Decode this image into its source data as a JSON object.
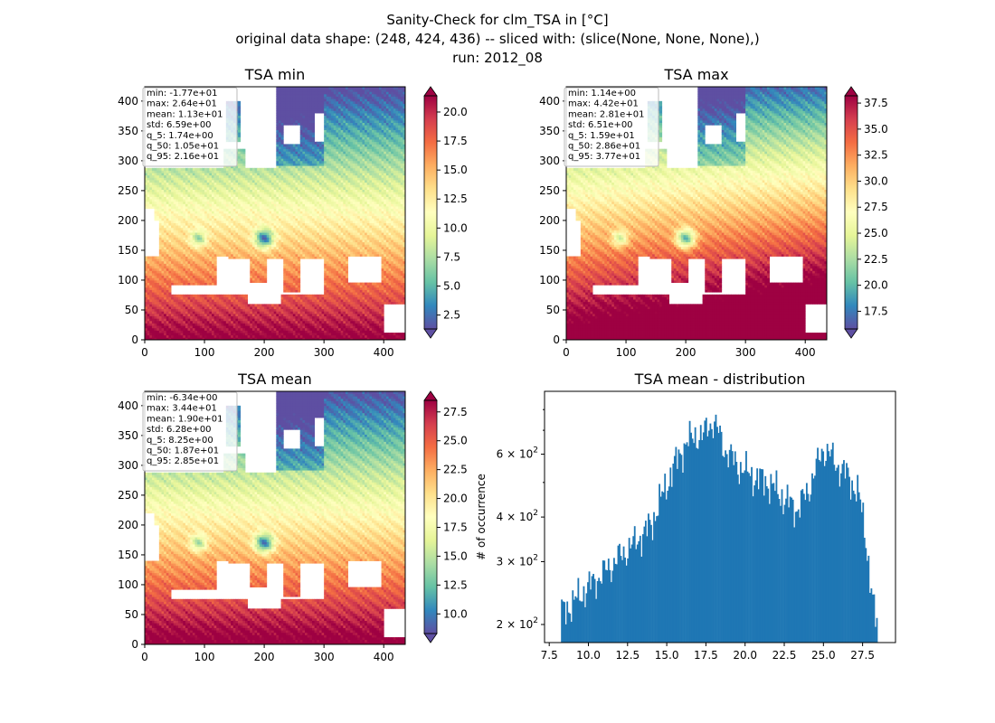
{
  "figure": {
    "title_lines": [
      "Sanity-Check for clm_TSA in [°C]",
      "original data shape: (248, 424, 436) -- sliced with: (slice(None, None, None),)",
      "run: 2012_08"
    ]
  },
  "colormap": "Spectral_r",
  "chart_data": [
    {
      "type": "heatmap",
      "title": "TSA min",
      "xlim": [
        0,
        436
      ],
      "ylim": [
        0,
        424
      ],
      "xticks": [
        0,
        100,
        200,
        300,
        400
      ],
      "yticks": [
        0,
        50,
        100,
        150,
        200,
        250,
        300,
        350,
        400
      ],
      "colorbar": {
        "vmin": 1.3,
        "vmax": 21.4,
        "ticks": [
          "2.5",
          "5.0",
          "7.5",
          "10.0",
          "12.5",
          "15.0",
          "17.5",
          "20.0"
        ],
        "extend": "both"
      },
      "stats": [
        "min: -1.77e+01",
        "max: 2.64e+01",
        "mean: 1.13e+01",
        "std: 6.59e+00",
        "q_5: 1.74e+00",
        "q_50: 1.05e+01",
        "q_95: 2.16e+01"
      ]
    },
    {
      "type": "heatmap",
      "title": "TSA max",
      "xlim": [
        0,
        436
      ],
      "ylim": [
        0,
        424
      ],
      "xticks": [
        0,
        100,
        200,
        300,
        400
      ],
      "yticks": [
        0,
        50,
        100,
        150,
        200,
        250,
        300,
        350,
        400
      ],
      "colorbar": {
        "vmin": 15.8,
        "vmax": 38.2,
        "ticks": [
          "17.5",
          "20.0",
          "22.5",
          "25.0",
          "27.5",
          "30.0",
          "32.5",
          "35.0",
          "37.5"
        ],
        "extend": "both"
      },
      "stats": [
        "min: 1.14e+00",
        "max: 4.42e+01",
        "mean: 2.81e+01",
        "std: 6.51e+00",
        "q_5: 1.59e+01",
        "q_50: 2.86e+01",
        "q_95: 3.77e+01"
      ]
    },
    {
      "type": "heatmap",
      "title": "TSA mean",
      "xlim": [
        0,
        436
      ],
      "ylim": [
        0,
        424
      ],
      "xticks": [
        0,
        100,
        200,
        300,
        400
      ],
      "yticks": [
        0,
        50,
        100,
        150,
        200,
        250,
        300,
        350,
        400
      ],
      "colorbar": {
        "vmin": 8.3,
        "vmax": 28.5,
        "ticks": [
          "10.0",
          "12.5",
          "15.0",
          "17.5",
          "20.0",
          "22.5",
          "25.0",
          "27.5"
        ],
        "extend": "both"
      },
      "stats": [
        "min: -6.34e+00",
        "max: 3.44e+01",
        "mean: 1.90e+01",
        "std: 6.28e+00",
        "q_5: 8.25e+00",
        "q_50: 1.87e+01",
        "q_95: 2.85e+01"
      ]
    },
    {
      "type": "bar",
      "subtype": "histogram",
      "title": "TSA mean - distribution",
      "xlabel": "",
      "ylabel": "# of occurrence",
      "yscale": "log",
      "xlim": [
        7.2,
        29.6
      ],
      "ylim": [
        178,
        900
      ],
      "xticks": [
        "7.5",
        "10.0",
        "12.5",
        "15.0",
        "17.5",
        "20.0",
        "22.5",
        "25.0",
        "27.5"
      ],
      "yticks": [
        {
          "mantissa": "2",
          "exp": "2",
          "value": 200
        },
        {
          "mantissa": "3",
          "exp": "2",
          "value": 300
        },
        {
          "mantissa": "4",
          "exp": "2",
          "value": 400
        },
        {
          "mantissa": "6",
          "exp": "2",
          "value": 600
        }
      ],
      "color": "#1f77b4",
      "x_anchors": [
        8.25,
        9.0,
        10.0,
        11.0,
        12.0,
        13.0,
        14.0,
        14.8,
        15.5,
        16.2,
        16.8,
        17.3,
        17.6,
        18.0,
        18.7,
        19.5,
        20.5,
        21.5,
        22.5,
        23.3,
        24.0,
        24.6,
        25.0,
        25.3,
        25.8,
        26.3,
        26.8,
        27.2,
        27.6,
        28.0,
        28.2,
        28.4
      ],
      "y_anchors": [
        215,
        230,
        255,
        280,
        310,
        340,
        380,
        470,
        560,
        640,
        680,
        670,
        720,
        740,
        620,
        560,
        520,
        500,
        450,
        420,
        470,
        560,
        620,
        610,
        560,
        540,
        500,
        470,
        380,
        260,
        220,
        200
      ],
      "bins": 230,
      "x_range": [
        8.25,
        28.45
      ]
    }
  ]
}
